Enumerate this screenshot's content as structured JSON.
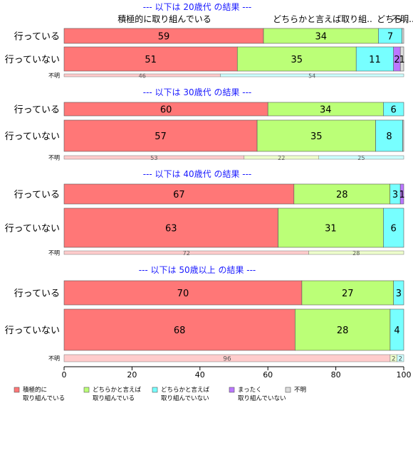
{
  "chart_data": {
    "type": "bar",
    "orientation": "horizontal-stacked-percent",
    "xlim": [
      0,
      100
    ],
    "x_ticks": [
      "0",
      "20",
      "40",
      "60",
      "80",
      "100"
    ],
    "header_labels": [
      "積極的に取り組んでいる",
      "どちらかと言えば取り組..",
      "どちら..",
      "不明.."
    ],
    "categories_legend": [
      {
        "key": "active",
        "lines": [
          "積極的に",
          "取り組んでいる"
        ],
        "color": "#ff7777"
      },
      {
        "key": "somewhat",
        "lines": [
          "どちらかと言えば",
          "取り組んでいる"
        ],
        "color": "#bbff77"
      },
      {
        "key": "somewhat_not",
        "lines": [
          "どちらかと言えば",
          "取り組んでいない"
        ],
        "color": "#77ffff"
      },
      {
        "key": "not_at_all",
        "lines": [
          "まったく",
          "取り組んでいない"
        ],
        "color": "#bb77ff"
      },
      {
        "key": "unknown",
        "lines": [
          "不明"
        ],
        "color": "#dddddd"
      }
    ],
    "panels": [
      {
        "title": "--- 以下は 20歳代 の結果 ---",
        "rows": [
          {
            "label": "行っている",
            "values": [
              59,
              34,
              7,
              0,
              0.5
            ],
            "labels": [
              "59",
              "34",
              "7",
              "",
              ""
            ]
          },
          {
            "label": "行っていない",
            "values": [
              51,
              35,
              11,
              2,
              1
            ],
            "labels": [
              "51",
              "35",
              "11",
              "2",
              "1"
            ]
          }
        ],
        "unknown_row": {
          "label": "不明",
          "values": [
            46,
            54
          ],
          "labels": [
            "46",
            "54"
          ],
          "colors": [
            "#ffcccc",
            "#ccffff"
          ]
        }
      },
      {
        "title": "--- 以下は 30歳代 の結果 ---",
        "rows": [
          {
            "label": "行っている",
            "values": [
              60,
              34,
              6,
              0,
              0
            ],
            "labels": [
              "60",
              "34",
              "6",
              "",
              ""
            ]
          },
          {
            "label": "行っていない",
            "values": [
              57,
              35,
              8,
              0,
              0.3
            ],
            "labels": [
              "57",
              "35",
              "8",
              "",
              ""
            ]
          }
        ],
        "unknown_row": {
          "label": "不明",
          "values": [
            53,
            22,
            25
          ],
          "labels": [
            "53",
            "22",
            "25"
          ],
          "colors": [
            "#ffcccc",
            "#eeffcc",
            "#ccffff"
          ]
        }
      },
      {
        "title": "--- 以下は 40歳代 の結果 ---",
        "rows": [
          {
            "label": "行っている",
            "values": [
              67,
              28,
              3,
              1,
              0
            ],
            "labels": [
              "67",
              "28",
              "3",
              "1",
              ""
            ]
          },
          {
            "label": "行っていない",
            "values": [
              63,
              31,
              6,
              0,
              0
            ],
            "labels": [
              "63",
              "31",
              "6",
              "",
              ""
            ]
          }
        ],
        "unknown_row": {
          "label": "不明",
          "values": [
            72,
            28
          ],
          "labels": [
            "72",
            "28"
          ],
          "colors": [
            "#ffcccc",
            "#eeffcc"
          ]
        }
      },
      {
        "title": "--- 以下は 50歳以上 の結果 ---",
        "rows": [
          {
            "label": "行っている",
            "values": [
              70,
              27,
              3,
              0,
              0
            ],
            "labels": [
              "70",
              "27",
              "3",
              "",
              ""
            ]
          },
          {
            "label": "行っていない",
            "values": [
              68,
              28,
              4,
              0,
              0
            ],
            "labels": [
              "68",
              "28",
              "4",
              "",
              ""
            ]
          }
        ],
        "unknown_row": {
          "label": "不明",
          "values": [
            96,
            2,
            2
          ],
          "labels": [
            "96",
            "2",
            "2"
          ],
          "colors": [
            "#ffcccc",
            "#eeffcc",
            "#ccffff"
          ]
        }
      }
    ]
  }
}
